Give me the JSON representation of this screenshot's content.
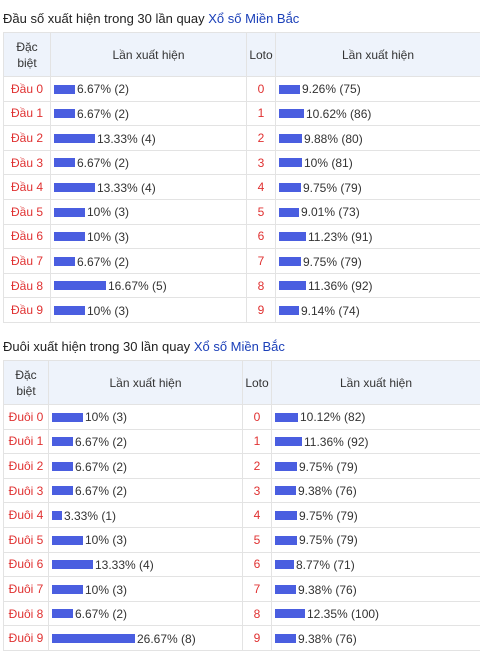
{
  "dau": {
    "title_prefix": "Đầu số xuất hiện trong 30 lần quay",
    "title_link": "Xổ số Miền Bắc",
    "headers": {
      "special": "Đặc biệt",
      "freq": "Lần xuất hiện",
      "loto": "Loto",
      "freq2": "Lần xuất hiện"
    },
    "rows": [
      {
        "label": "Đầu 0",
        "pct": 6.67,
        "text": "6.67% (2)",
        "loto": "0",
        "pct2": 9.26,
        "text2": "9.26% (75)"
      },
      {
        "label": "Đầu 1",
        "pct": 6.67,
        "text": "6.67% (2)",
        "loto": "1",
        "pct2": 10.62,
        "text2": "10.62% (86)"
      },
      {
        "label": "Đầu 2",
        "pct": 13.33,
        "text": "13.33% (4)",
        "loto": "2",
        "pct2": 9.88,
        "text2": "9.88% (80)"
      },
      {
        "label": "Đầu 3",
        "pct": 6.67,
        "text": "6.67% (2)",
        "loto": "3",
        "pct2": 10,
        "text2": "10% (81)"
      },
      {
        "label": "Đầu 4",
        "pct": 13.33,
        "text": "13.33% (4)",
        "loto": "4",
        "pct2": 9.75,
        "text2": "9.75% (79)"
      },
      {
        "label": "Đầu 5",
        "pct": 10,
        "text": "10% (3)",
        "loto": "5",
        "pct2": 9.01,
        "text2": "9.01% (73)"
      },
      {
        "label": "Đầu 6",
        "pct": 10,
        "text": "10% (3)",
        "loto": "6",
        "pct2": 11.23,
        "text2": "11.23% (91)"
      },
      {
        "label": "Đầu 7",
        "pct": 6.67,
        "text": "6.67% (2)",
        "loto": "7",
        "pct2": 9.75,
        "text2": "9.75% (79)"
      },
      {
        "label": "Đầu 8",
        "pct": 16.67,
        "text": "16.67% (5)",
        "loto": "8",
        "pct2": 11.36,
        "text2": "11.36% (92)"
      },
      {
        "label": "Đầu 9",
        "pct": 10,
        "text": "10% (3)",
        "loto": "9",
        "pct2": 9.14,
        "text2": "9.14% (74)"
      }
    ]
  },
  "duoi": {
    "title_prefix": "Đuôi xuất hiện trong 30 lần quay",
    "title_link": "Xổ số Miền Bắc",
    "headers": {
      "special": "Đặc biệt",
      "freq": "Lần xuất hiện",
      "loto": "Loto",
      "freq2": "Lần xuất hiện"
    },
    "rows": [
      {
        "label": "Đuôi 0",
        "pct": 10,
        "text": "10% (3)",
        "loto": "0",
        "pct2": 10.12,
        "text2": "10.12% (82)"
      },
      {
        "label": "Đuôi 1",
        "pct": 6.67,
        "text": "6.67% (2)",
        "loto": "1",
        "pct2": 11.36,
        "text2": "11.36% (92)"
      },
      {
        "label": "Đuôi 2",
        "pct": 6.67,
        "text": "6.67% (2)",
        "loto": "2",
        "pct2": 9.75,
        "text2": "9.75% (79)"
      },
      {
        "label": "Đuôi 3",
        "pct": 6.67,
        "text": "6.67% (2)",
        "loto": "3",
        "pct2": 9.38,
        "text2": "9.38% (76)"
      },
      {
        "label": "Đuôi 4",
        "pct": 3.33,
        "text": "3.33% (1)",
        "loto": "4",
        "pct2": 9.75,
        "text2": "9.75% (79)"
      },
      {
        "label": "Đuôi 5",
        "pct": 10,
        "text": "10% (3)",
        "loto": "5",
        "pct2": 9.75,
        "text2": "9.75% (79)"
      },
      {
        "label": "Đuôi 6",
        "pct": 13.33,
        "text": "13.33% (4)",
        "loto": "6",
        "pct2": 8.77,
        "text2": "8.77% (71)"
      },
      {
        "label": "Đuôi 7",
        "pct": 10,
        "text": "10% (3)",
        "loto": "7",
        "pct2": 9.38,
        "text2": "9.38% (76)"
      },
      {
        "label": "Đuôi 8",
        "pct": 6.67,
        "text": "6.67% (2)",
        "loto": "8",
        "pct2": 12.35,
        "text2": "12.35% (100)"
      },
      {
        "label": "Đuôi 9",
        "pct": 26.67,
        "text": "26.67% (8)",
        "loto": "9",
        "pct2": 9.38,
        "text2": "9.38% (76)"
      }
    ]
  },
  "colors": {
    "bar": "#4a5ee0",
    "label": "#e03131",
    "header_bg": "#eef3fb",
    "link": "#1a3fb8"
  }
}
